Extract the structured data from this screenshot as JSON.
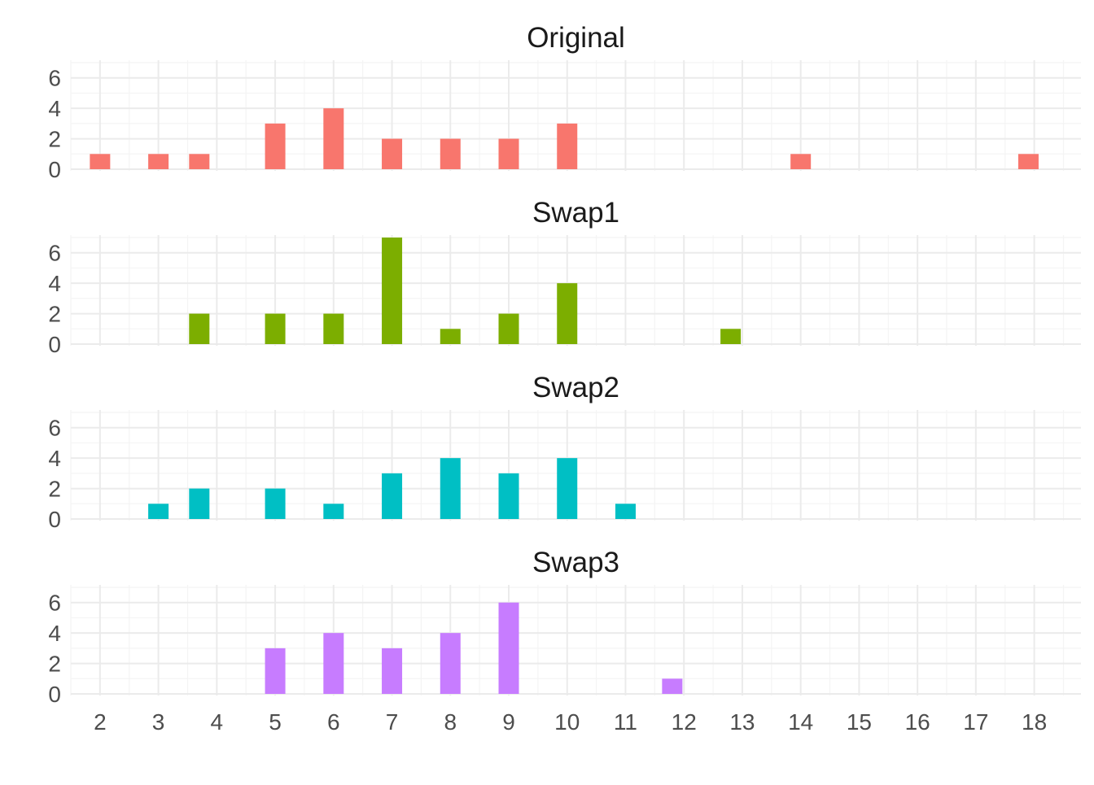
{
  "chart_data": [
    {
      "type": "bar",
      "title": "Original",
      "color": "#F8766D",
      "x": [
        2,
        3,
        3.7,
        5,
        6,
        7,
        8,
        9,
        10,
        14,
        17.9
      ],
      "values": [
        1,
        1,
        1,
        3,
        4,
        2,
        2,
        2,
        3,
        1,
        1
      ],
      "ylim": [
        0,
        7
      ],
      "yticks": [
        "0",
        "2",
        "4",
        "6"
      ],
      "xlim": [
        1.5,
        18.8
      ],
      "grid": true
    },
    {
      "type": "bar",
      "title": "Swap1",
      "color": "#7CAE00",
      "x": [
        3.7,
        5,
        6,
        7,
        8,
        9,
        10,
        12.8
      ],
      "values": [
        2,
        2,
        2,
        7,
        1,
        2,
        4,
        1
      ],
      "ylim": [
        0,
        7
      ],
      "yticks": [
        "0",
        "2",
        "4",
        "6"
      ],
      "xlim": [
        1.5,
        18.8
      ],
      "grid": true
    },
    {
      "type": "bar",
      "title": "Swap2",
      "color": "#00BFC4",
      "x": [
        3,
        3.7,
        5,
        6,
        7,
        8,
        9,
        10,
        11
      ],
      "values": [
        1,
        2,
        2,
        1,
        3,
        4,
        3,
        4,
        1
      ],
      "ylim": [
        0,
        7
      ],
      "yticks": [
        "0",
        "2",
        "4",
        "6"
      ],
      "xlim": [
        1.5,
        18.8
      ],
      "grid": true
    },
    {
      "type": "bar",
      "title": "Swap3",
      "color": "#C77CFF",
      "x": [
        5,
        6,
        7,
        8,
        9,
        11.8
      ],
      "values": [
        3,
        4,
        3,
        4,
        6,
        1
      ],
      "ylim": [
        0,
        7
      ],
      "yticks": [
        "0",
        "2",
        "4",
        "6"
      ],
      "xlim": [
        1.5,
        18.8
      ],
      "grid": true
    }
  ],
  "x_axis": {
    "tick_values": [
      2,
      3,
      4,
      5,
      6,
      7,
      8,
      9,
      10,
      11,
      12,
      13,
      14,
      15,
      16,
      17,
      18
    ],
    "tick_labels": [
      "2",
      "3",
      "4",
      "5",
      "6",
      "7",
      "8",
      "9",
      "10",
      "11",
      "12",
      "13",
      "14",
      "15",
      "16",
      "17",
      "18"
    ]
  }
}
